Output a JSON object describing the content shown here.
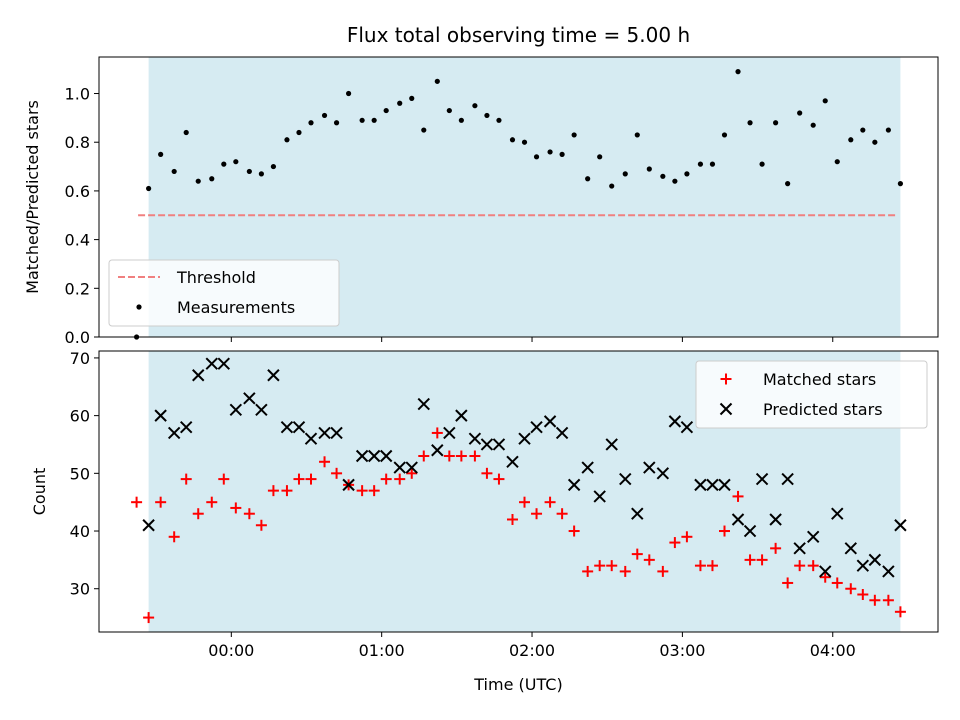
{
  "chart_data": [
    {
      "type": "scatter",
      "title": "Flux total observing time = 5.00 h",
      "xlabel": "",
      "ylabel": "Matched/Predicted stars",
      "ylim": [
        0,
        1.15
      ],
      "yticks": [
        0.0,
        0.2,
        0.4,
        0.6,
        0.8,
        1.0
      ],
      "ytick_labels": [
        "0.0",
        "0.2",
        "0.4",
        "0.6",
        "0.8",
        "1.0"
      ],
      "x_unit": "hours (UTC)",
      "xlim": [
        -0.88,
        4.7
      ],
      "xticks": [
        0,
        1,
        2,
        3,
        4
      ],
      "shaded_span": [
        -0.55,
        4.45
      ],
      "shade_color": "#add8e6",
      "grid": false,
      "legend_position": "lower-left",
      "series": [
        {
          "name": "Threshold",
          "style": "dashed-line",
          "color": "#f08080",
          "x": [
            -0.62,
            4.42
          ],
          "y": [
            0.5,
            0.5
          ]
        },
        {
          "name": "Measurements",
          "style": "dot",
          "color": "#000000",
          "x": [
            -0.63,
            -0.55,
            -0.47,
            -0.38,
            -0.3,
            -0.22,
            -0.13,
            -0.05,
            0.03,
            0.12,
            0.2,
            0.28,
            0.37,
            0.45,
            0.53,
            0.62,
            0.7,
            0.78,
            0.87,
            0.95,
            1.03,
            1.12,
            1.2,
            1.28,
            1.37,
            1.45,
            1.53,
            1.62,
            1.7,
            1.78,
            1.87,
            1.95,
            2.03,
            2.12,
            2.2,
            2.28,
            2.37,
            2.45,
            2.53,
            2.62,
            2.7,
            2.78,
            2.87,
            2.95,
            3.03,
            3.12,
            3.2,
            3.28,
            3.37,
            3.45,
            3.53,
            3.62,
            3.7,
            3.78,
            3.87,
            3.95,
            4.03,
            4.12,
            4.2,
            4.28,
            4.37,
            4.45
          ],
          "y": [
            0.0,
            0.61,
            0.75,
            0.68,
            0.84,
            0.64,
            0.65,
            0.71,
            0.72,
            0.68,
            0.67,
            0.7,
            0.81,
            0.84,
            0.88,
            0.91,
            0.88,
            1.0,
            0.89,
            0.89,
            0.93,
            0.96,
            0.98,
            0.85,
            1.05,
            0.93,
            0.89,
            0.95,
            0.91,
            0.89,
            0.81,
            0.8,
            0.74,
            0.76,
            0.75,
            0.83,
            0.65,
            0.74,
            0.62,
            0.67,
            0.83,
            0.69,
            0.66,
            0.64,
            0.67,
            0.71,
            0.71,
            0.83,
            1.09,
            0.88,
            0.71,
            0.88,
            0.63,
            0.92,
            0.87,
            0.97,
            0.72,
            0.81,
            0.85,
            0.8,
            0.85,
            0.63
          ]
        }
      ]
    },
    {
      "type": "scatter",
      "title": "",
      "xlabel": "Time (UTC)",
      "ylabel": "Count",
      "ylim": [
        22.5,
        71.2
      ],
      "yticks": [
        30,
        40,
        50,
        60,
        70
      ],
      "ytick_labels": [
        "30",
        "40",
        "50",
        "60",
        "70"
      ],
      "x_unit": "hours (UTC)",
      "xlim": [
        -0.88,
        4.7
      ],
      "xticks": [
        0,
        1,
        2,
        3,
        4
      ],
      "xtick_labels": [
        "00:00",
        "01:00",
        "02:00",
        "03:00",
        "04:00"
      ],
      "shaded_span": [
        -0.55,
        4.45
      ],
      "shade_color": "#add8e6",
      "grid": false,
      "legend_position": "top-right",
      "series": [
        {
          "name": "Matched stars",
          "style": "plus",
          "color": "#ff0000",
          "x": [
            -0.63,
            -0.55,
            -0.47,
            -0.38,
            -0.3,
            -0.22,
            -0.13,
            -0.05,
            0.03,
            0.12,
            0.2,
            0.28,
            0.37,
            0.45,
            0.53,
            0.62,
            0.7,
            0.78,
            0.87,
            0.95,
            1.03,
            1.12,
            1.2,
            1.28,
            1.37,
            1.45,
            1.53,
            1.62,
            1.7,
            1.78,
            1.87,
            1.95,
            2.03,
            2.12,
            2.2,
            2.28,
            2.37,
            2.45,
            2.53,
            2.62,
            2.7,
            2.78,
            2.87,
            2.95,
            3.03,
            3.12,
            3.2,
            3.28,
            3.37,
            3.45,
            3.53,
            3.62,
            3.7,
            3.78,
            3.87,
            3.95,
            4.03,
            4.12,
            4.2,
            4.28,
            4.37,
            4.45
          ],
          "y": [
            45,
            25,
            45,
            39,
            49,
            43,
            45,
            49,
            44,
            43,
            41,
            47,
            47,
            49,
            49,
            52,
            50,
            48,
            47,
            47,
            49,
            49,
            50,
            53,
            57,
            53,
            53,
            53,
            50,
            49,
            42,
            45,
            43,
            45,
            43,
            40,
            33,
            34,
            34,
            33,
            36,
            35,
            33,
            38,
            39,
            34,
            34,
            40,
            46,
            35,
            35,
            37,
            31,
            34,
            34,
            32,
            31,
            30,
            29,
            28,
            28,
            26
          ]
        },
        {
          "name": "Predicted stars",
          "style": "cross",
          "color": "#000000",
          "x": [
            -0.55,
            -0.47,
            -0.38,
            -0.3,
            -0.22,
            -0.13,
            -0.05,
            0.03,
            0.12,
            0.2,
            0.28,
            0.37,
            0.45,
            0.53,
            0.62,
            0.7,
            0.78,
            0.87,
            0.95,
            1.03,
            1.12,
            1.2,
            1.28,
            1.37,
            1.45,
            1.53,
            1.62,
            1.7,
            1.78,
            1.87,
            1.95,
            2.03,
            2.12,
            2.2,
            2.28,
            2.37,
            2.45,
            2.53,
            2.62,
            2.7,
            2.78,
            2.87,
            2.95,
            3.03,
            3.12,
            3.2,
            3.28,
            3.37,
            3.45,
            3.53,
            3.62,
            3.7,
            3.78,
            3.87,
            3.95,
            4.03,
            4.12,
            4.2,
            4.28,
            4.37,
            4.45
          ],
          "y": [
            41,
            60,
            57,
            58,
            67,
            69,
            69,
            61,
            63,
            61,
            67,
            58,
            58,
            56,
            57,
            57,
            48,
            53,
            53,
            53,
            51,
            51,
            62,
            54,
            57,
            60,
            56,
            55,
            55,
            52,
            56,
            58,
            59,
            57,
            48,
            51,
            46,
            55,
            49,
            43,
            51,
            50,
            59,
            58,
            48,
            48,
            48,
            42,
            40,
            49,
            42,
            49,
            37,
            39,
            33,
            43,
            37,
            34,
            35,
            33,
            41
          ]
        }
      ]
    }
  ]
}
